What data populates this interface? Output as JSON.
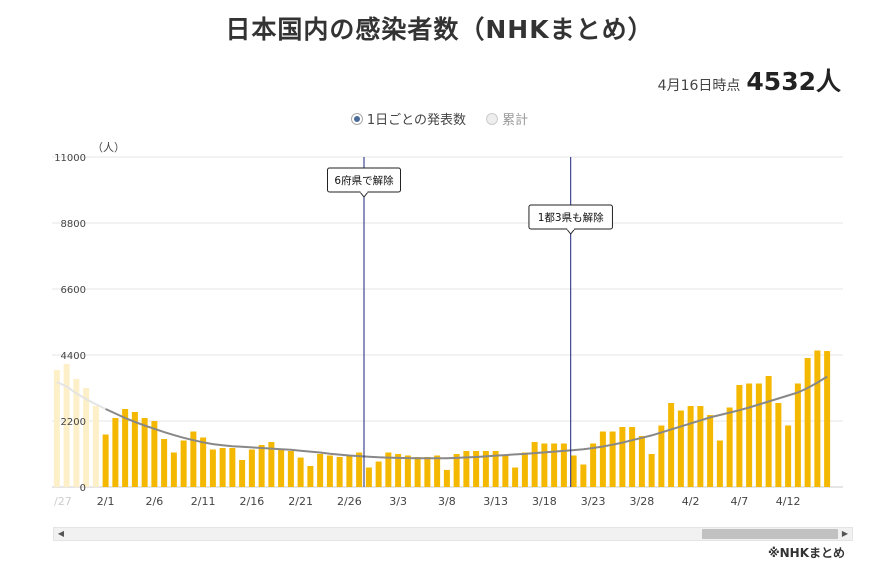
{
  "page": {
    "title": "日本国内の感染者数（NHKまとめ）",
    "asof_label": "4月16日時点",
    "asof_value": "4532人",
    "source": "※NHKまとめ"
  },
  "toggle": {
    "daily_label": "1日ごとの発表数",
    "cumulative_label": "累計",
    "selected": "daily"
  },
  "chart_data": {
    "type": "bar",
    "ylabel": "（人）",
    "ylim": [
      0,
      11000
    ],
    "yticks": [
      "0",
      "2200",
      "4400",
      "6600",
      "8800",
      "11000"
    ],
    "xticks": [
      {
        "label": "/27",
        "index": 0
      },
      {
        "label": "2/1",
        "index": 5
      },
      {
        "label": "2/6",
        "index": 10
      },
      {
        "label": "2/11",
        "index": 15
      },
      {
        "label": "2/16",
        "index": 20
      },
      {
        "label": "2/21",
        "index": 25
      },
      {
        "label": "2/26",
        "index": 30
      },
      {
        "label": "3/3",
        "index": 35
      },
      {
        "label": "3/8",
        "index": 40
      },
      {
        "label": "3/13",
        "index": 45
      },
      {
        "label": "3/18",
        "index": 50
      },
      {
        "label": "3/23",
        "index": 55
      },
      {
        "label": "3/28",
        "index": 60
      },
      {
        "label": "4/2",
        "index": 65
      },
      {
        "label": "4/7",
        "index": 70
      },
      {
        "label": "4/12",
        "index": 75
      }
    ],
    "faded_count": 5,
    "values": [
      3900,
      4100,
      3600,
      3300,
      2700,
      1750,
      2300,
      2600,
      2500,
      2300,
      2200,
      1600,
      1150,
      1550,
      1850,
      1650,
      1250,
      1300,
      1300,
      900,
      1250,
      1400,
      1500,
      1250,
      1200,
      980,
      700,
      1100,
      1050,
      1000,
      1050,
      1150,
      650,
      850,
      1150,
      1100,
      1050,
      1000,
      1000,
      1050,
      570,
      1100,
      1200,
      1200,
      1200,
      1200,
      1050,
      650,
      1150,
      1500,
      1450,
      1450,
      1450,
      1050,
      750,
      1450,
      1850,
      1850,
      2000,
      2000,
      1700,
      1100,
      2050,
      2800,
      2550,
      2700,
      2700,
      2400,
      1550,
      2650,
      3400,
      3450,
      3450,
      3700,
      2800,
      2050,
      3450,
      4300,
      4550,
      4532
    ],
    "average": [
      3500,
      3350,
      3120,
      2930,
      2760,
      2600,
      2450,
      2300,
      2170,
      2050,
      1940,
      1830,
      1730,
      1640,
      1560,
      1490,
      1430,
      1390,
      1360,
      1340,
      1320,
      1300,
      1280,
      1260,
      1240,
      1210,
      1180,
      1150,
      1110,
      1080,
      1050,
      1030,
      1010,
      990,
      980,
      970,
      965,
      960,
      960,
      960,
      960,
      970,
      985,
      1000,
      1020,
      1045,
      1065,
      1085,
      1105,
      1130,
      1155,
      1180,
      1205,
      1230,
      1260,
      1300,
      1350,
      1410,
      1480,
      1560,
      1640,
      1720,
      1820,
      1920,
      2020,
      2120,
      2220,
      2320,
      2400,
      2480,
      2560,
      2650,
      2750,
      2850,
      2950,
      3050,
      3150,
      3300,
      3480,
      3680
    ],
    "annotations": [
      {
        "label": "6府県で解除",
        "index": 31.5
      },
      {
        "label": "1都3県も解除",
        "index": 52.7
      }
    ],
    "colors": {
      "bar": "#f5b800",
      "bar_faded": "#fdf0c8",
      "average": "#888888",
      "marker_line": "#1a237e",
      "grid": "#e6e6e6"
    }
  }
}
